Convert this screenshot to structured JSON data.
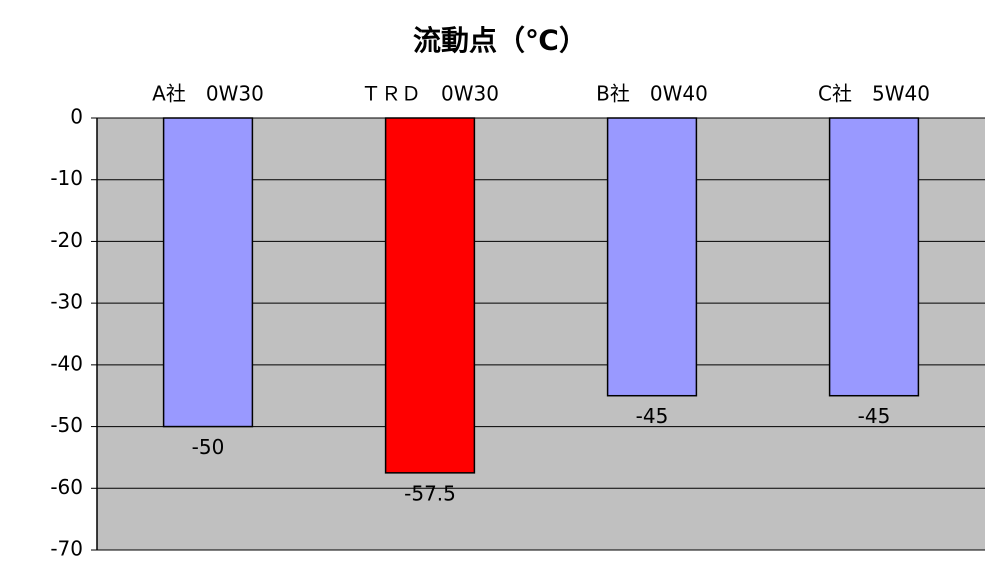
{
  "chart_data": {
    "type": "bar",
    "title": "流動点（℃）",
    "categories": [
      "A社　0W30",
      "ＴＲＤ　0W30",
      "B社　0W40",
      "C社　5W40"
    ],
    "values": [
      -50,
      -57.5,
      -45,
      -45
    ],
    "colors": [
      "#9999ff",
      "#ff0000",
      "#9999ff",
      "#9999ff"
    ],
    "ylim": [
      -70,
      0
    ],
    "yticks": [
      0,
      -10,
      -20,
      -30,
      -40,
      -50,
      -60,
      -70
    ],
    "grid": true
  }
}
